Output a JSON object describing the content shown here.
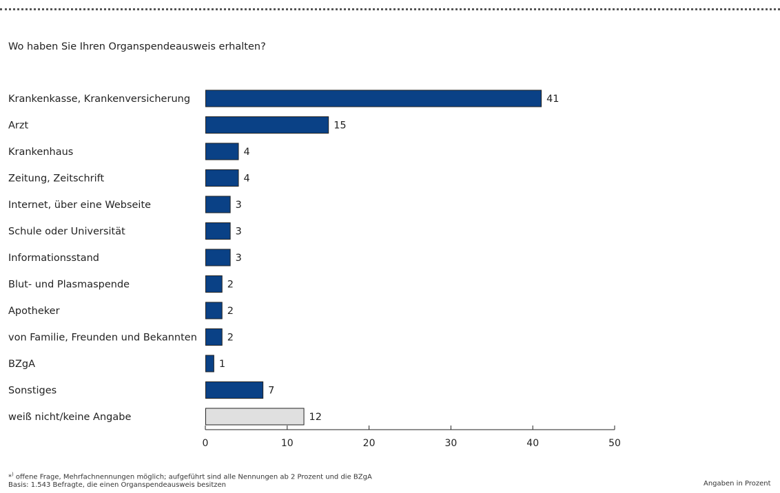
{
  "question": "Wo haben Sie Ihren Organspendeausweis erhalten?",
  "footnote": {
    "marker": "*",
    "marker_sup": ")",
    "line1": "offene Frage, Mehrfachnennungen möglich; aufgeführt sind alle Nennungen ab 2 Prozent und die BZgA",
    "line2": "Basis: 1.543 Befragte, die einen Organspendeausweis besitzen"
  },
  "unit_note": "Angaben in Prozent",
  "colors": {
    "bar": "#0a4186",
    "bar_alt": "#e0e0e0",
    "bar_stroke": "#222222"
  },
  "chart_data": {
    "type": "bar",
    "orientation": "horizontal",
    "title": "Wo haben Sie Ihren Organspendeausweis erhalten?",
    "categories": [
      "Krankenkasse, Krankenversicherung",
      "Arzt",
      "Krankenhaus",
      "Zeitung, Zeitschrift",
      "Internet, über eine Webseite",
      "Schule oder Universität",
      "Informationsstand",
      "Blut- und Plasmaspende",
      "Apotheker",
      "von Familie, Freunden und Bekannten",
      "BZgA",
      "Sonstiges",
      "weiß nicht/keine Angabe"
    ],
    "values": [
      41,
      15,
      4,
      4,
      3,
      3,
      3,
      2,
      2,
      2,
      1,
      7,
      12
    ],
    "highlight": [
      false,
      false,
      false,
      false,
      false,
      false,
      false,
      false,
      false,
      false,
      false,
      false,
      true
    ],
    "xlim": [
      0,
      50
    ],
    "xticks": [
      0,
      10,
      20,
      30,
      40,
      50
    ],
    "grid": false,
    "legend": "none",
    "data_labels": true
  }
}
